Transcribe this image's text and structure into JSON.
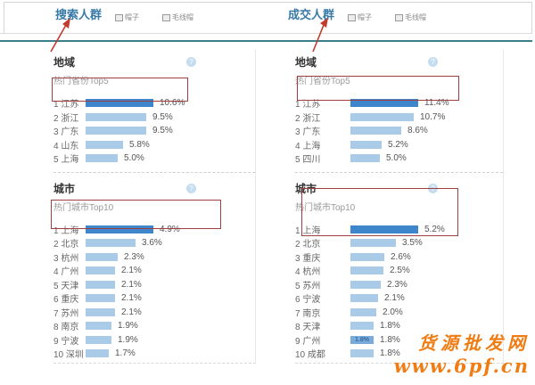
{
  "tab_strip": {
    "tabs": [
      {
        "title": "搜索人群",
        "chips": [
          {
            "label": "帽子"
          },
          {
            "label": "毛线帽"
          }
        ]
      },
      {
        "title": "成交人群",
        "chips": [
          {
            "label": "帽子"
          },
          {
            "label": "毛线帽"
          }
        ]
      }
    ]
  },
  "help_icon_glyph": "?",
  "panels": [
    {
      "name": "搜索人群",
      "sections": [
        {
          "title": "地域",
          "subtitle": "热门省份Top5",
          "rows": [
            {
              "rank": 1,
              "name": "江苏",
              "value": 10.6,
              "pct": "10.6%"
            },
            {
              "rank": 2,
              "name": "浙江",
              "value": 9.5,
              "pct": "9.5%"
            },
            {
              "rank": 3,
              "name": "广东",
              "value": 9.5,
              "pct": "9.5%"
            },
            {
              "rank": 4,
              "name": "山东",
              "value": 5.8,
              "pct": "5.8%"
            },
            {
              "rank": 5,
              "name": "上海",
              "value": 5.0,
              "pct": "5.0%"
            }
          ]
        },
        {
          "title": "城市",
          "subtitle": "热门城市Top10",
          "rows": [
            {
              "rank": 1,
              "name": "上海",
              "value": 4.9,
              "pct": "4.9%"
            },
            {
              "rank": 2,
              "name": "北京",
              "value": 3.6,
              "pct": "3.6%"
            },
            {
              "rank": 3,
              "name": "杭州",
              "value": 2.3,
              "pct": "2.3%"
            },
            {
              "rank": 4,
              "name": "广州",
              "value": 2.1,
              "pct": "2.1%"
            },
            {
              "rank": 5,
              "name": "天津",
              "value": 2.1,
              "pct": "2.1%"
            },
            {
              "rank": 6,
              "name": "重庆",
              "value": 2.1,
              "pct": "2.1%"
            },
            {
              "rank": 7,
              "name": "苏州",
              "value": 2.1,
              "pct": "2.1%"
            },
            {
              "rank": 8,
              "name": "南京",
              "value": 1.9,
              "pct": "1.9%"
            },
            {
              "rank": 9,
              "name": "宁波",
              "value": 1.9,
              "pct": "1.9%"
            },
            {
              "rank": 10,
              "name": "深圳",
              "value": 1.7,
              "pct": "1.7%"
            }
          ]
        }
      ]
    },
    {
      "name": "成交人群",
      "sections": [
        {
          "title": "地域",
          "subtitle": "热门省份Top5",
          "rows": [
            {
              "rank": 1,
              "name": "江苏",
              "value": 11.4,
              "pct": "11.4%"
            },
            {
              "rank": 2,
              "name": "浙江",
              "value": 10.7,
              "pct": "10.7%"
            },
            {
              "rank": 3,
              "name": "广东",
              "value": 8.6,
              "pct": "8.6%"
            },
            {
              "rank": 4,
              "name": "上海",
              "value": 5.2,
              "pct": "5.2%"
            },
            {
              "rank": 5,
              "name": "四川",
              "value": 5.0,
              "pct": "5.0%"
            }
          ]
        },
        {
          "title": "城市",
          "subtitle": "热门城市Top10",
          "rows": [
            {
              "rank": 1,
              "name": "上海",
              "value": 5.2,
              "pct": "5.2%"
            },
            {
              "rank": 2,
              "name": "北京",
              "value": 3.5,
              "pct": "3.5%"
            },
            {
              "rank": 3,
              "name": "重庆",
              "value": 2.6,
              "pct": "2.6%"
            },
            {
              "rank": 4,
              "name": "杭州",
              "value": 2.5,
              "pct": "2.5%"
            },
            {
              "rank": 5,
              "name": "苏州",
              "value": 2.3,
              "pct": "2.3%"
            },
            {
              "rank": 6,
              "name": "宁波",
              "value": 2.1,
              "pct": "2.1%"
            },
            {
              "rank": 7,
              "name": "南京",
              "value": 2.0,
              "pct": "2.0%"
            },
            {
              "rank": 8,
              "name": "天津",
              "value": 1.8,
              "pct": "1.8%"
            },
            {
              "rank": 9,
              "name": "广州",
              "value": 1.8,
              "pct": "1.8%",
              "overlay": "1.8%"
            },
            {
              "rank": 10,
              "name": "成都",
              "value": 1.8,
              "pct": "1.8%"
            }
          ]
        }
      ]
    }
  ],
  "watermark": {
    "line1": "货源批发网",
    "line2": "www.6pf.cn"
  },
  "colors": {
    "tab_title": "#3779a5",
    "teal_rule": "#3b7f8c",
    "bar_dark": "#3d86cc",
    "bar_light": "#a9cbe8",
    "annotation_red": "#9e4040",
    "arrow_red": "#c23b2e",
    "watermark_orange": "#f07c14"
  }
}
